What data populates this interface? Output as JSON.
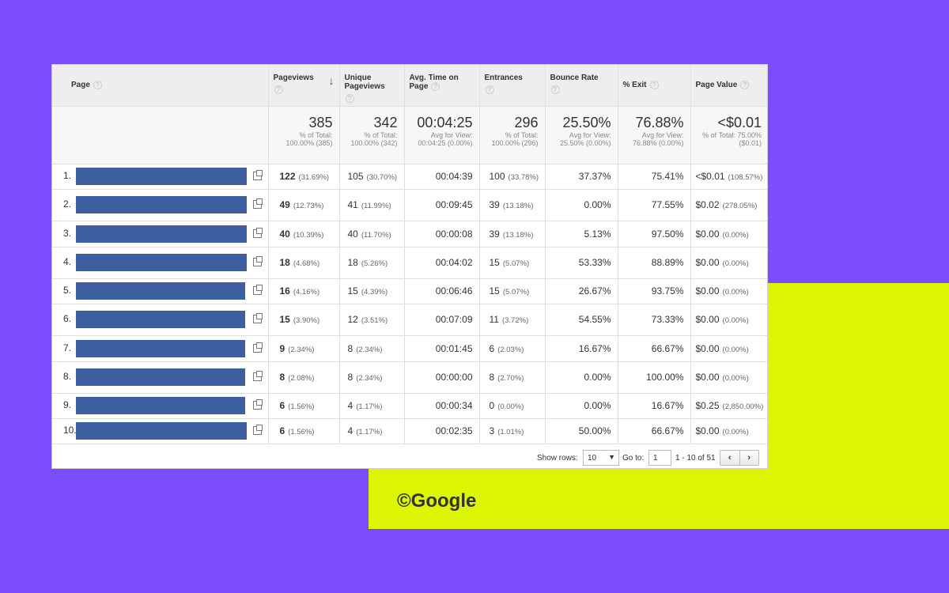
{
  "colors": {
    "background": "#7b4dff",
    "accent_block": "#dcf500",
    "page_bar": "#3e5f9f"
  },
  "credit": "©Google",
  "columns": {
    "page": "Page",
    "pageviews": "Pageviews",
    "unique_pageviews": "Unique Pageviews",
    "avg_time": "Avg. Time on Page",
    "entrances": "Entrances",
    "bounce_rate": "Bounce Rate",
    "exit": "% Exit",
    "page_value": "Page Value",
    "help_glyph": "?",
    "sort_arrow": "↓"
  },
  "totals": {
    "pageviews": {
      "value": "385",
      "sub": "% of Total: 100.00% (385)"
    },
    "unique_pageviews": {
      "value": "342",
      "sub": "% of Total: 100.00% (342)"
    },
    "avg_time": {
      "value": "00:04:25",
      "sub": "Avg for View: 00:04:25 (0.00%)"
    },
    "entrances": {
      "value": "296",
      "sub": "% of Total: 100.00% (296)"
    },
    "bounce_rate": {
      "value": "25.50%",
      "sub": "Avg for View: 25.50% (0.00%)"
    },
    "exit": {
      "value": "76.88%",
      "sub": "Avg for View: 76.88% (0.00%)"
    },
    "page_value": {
      "value": "<$0.01",
      "sub": "% of Total: 75.00% ($0.01)"
    }
  },
  "rows": [
    {
      "n": "1.",
      "pv": "122",
      "pv_pct": "(31.69%)",
      "upv": "105",
      "upv_pct": "(30.70%)",
      "time": "00:04:39",
      "ent": "100",
      "ent_pct": "(33.78%)",
      "bounce": "37.37%",
      "exit": "75.41%",
      "val": "<$0.01",
      "val_pct": "(108.57%)"
    },
    {
      "n": "2.",
      "pv": "49",
      "pv_pct": "(12.73%)",
      "upv": "41",
      "upv_pct": "(11.99%)",
      "time": "00:09:45",
      "ent": "39",
      "ent_pct": "(13.18%)",
      "bounce": "0.00%",
      "exit": "77.55%",
      "val": "$0.02",
      "val_pct": "(278.05%)"
    },
    {
      "n": "3.",
      "pv": "40",
      "pv_pct": "(10.39%)",
      "upv": "40",
      "upv_pct": "(11.70%)",
      "time": "00:00:08",
      "ent": "39",
      "ent_pct": "(13.18%)",
      "bounce": "5.13%",
      "exit": "97.50%",
      "val": "$0.00",
      "val_pct": "(0.00%)"
    },
    {
      "n": "4.",
      "pv": "18",
      "pv_pct": "(4.68%)",
      "upv": "18",
      "upv_pct": "(5.26%)",
      "time": "00:04:02",
      "ent": "15",
      "ent_pct": "(5.07%)",
      "bounce": "53.33%",
      "exit": "88.89%",
      "val": "$0.00",
      "val_pct": "(0.00%)"
    },
    {
      "n": "5.",
      "pv": "16",
      "pv_pct": "(4.16%)",
      "upv": "15",
      "upv_pct": "(4.39%)",
      "time": "00:06:46",
      "ent": "15",
      "ent_pct": "(5.07%)",
      "bounce": "26.67%",
      "exit": "93.75%",
      "val": "$0.00",
      "val_pct": "(0.00%)"
    },
    {
      "n": "6.",
      "pv": "15",
      "pv_pct": "(3.90%)",
      "upv": "12",
      "upv_pct": "(3.51%)",
      "time": "00:07:09",
      "ent": "11",
      "ent_pct": "(3.72%)",
      "bounce": "54.55%",
      "exit": "73.33%",
      "val": "$0.00",
      "val_pct": "(0.00%)"
    },
    {
      "n": "7.",
      "pv": "9",
      "pv_pct": "(2.34%)",
      "upv": "8",
      "upv_pct": "(2.34%)",
      "time": "00:01:45",
      "ent": "6",
      "ent_pct": "(2.03%)",
      "bounce": "16.67%",
      "exit": "66.67%",
      "val": "$0.00",
      "val_pct": "(0.00%)"
    },
    {
      "n": "8.",
      "pv": "8",
      "pv_pct": "(2.08%)",
      "upv": "8",
      "upv_pct": "(2.34%)",
      "time": "00:00:00",
      "ent": "8",
      "ent_pct": "(2.70%)",
      "bounce": "0.00%",
      "exit": "100.00%",
      "val": "$0.00",
      "val_pct": "(0.00%)"
    },
    {
      "n": "9.",
      "pv": "6",
      "pv_pct": "(1.56%)",
      "upv": "4",
      "upv_pct": "(1.17%)",
      "time": "00:00:34",
      "ent": "0",
      "ent_pct": "(0.00%)",
      "bounce": "0.00%",
      "exit": "16.67%",
      "val": "$0.25",
      "val_pct": "(2,850.00%)"
    },
    {
      "n": "10.",
      "pv": "6",
      "pv_pct": "(1.56%)",
      "upv": "4",
      "upv_pct": "(1.17%)",
      "time": "00:02:35",
      "ent": "3",
      "ent_pct": "(1.01%)",
      "bounce": "50.00%",
      "exit": "66.67%",
      "val": "$0.00",
      "val_pct": "(0.00%)"
    }
  ],
  "footer": {
    "show_rows_label": "Show rows:",
    "show_rows_value": "10",
    "goto_label": "Go to:",
    "goto_value": "1",
    "range": "1 - 10 of 51",
    "prev": "‹",
    "next": "›"
  }
}
